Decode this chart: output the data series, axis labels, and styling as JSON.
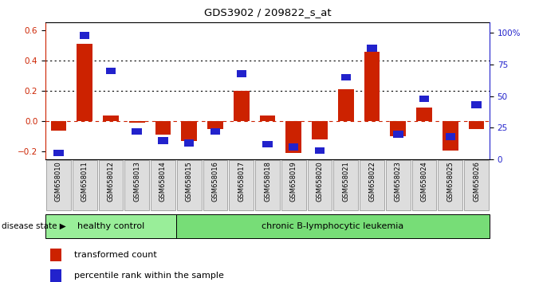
{
  "title": "GDS3902 / 209822_s_at",
  "samples": [
    "GSM658010",
    "GSM658011",
    "GSM658012",
    "GSM658013",
    "GSM658014",
    "GSM658015",
    "GSM658016",
    "GSM658017",
    "GSM658018",
    "GSM658019",
    "GSM658020",
    "GSM658021",
    "GSM658022",
    "GSM658023",
    "GSM658024",
    "GSM658025",
    "GSM658026"
  ],
  "bar_values": [
    -0.06,
    0.51,
    0.04,
    -0.01,
    -0.09,
    -0.13,
    -0.05,
    0.2,
    0.04,
    -0.21,
    -0.12,
    0.21,
    0.46,
    -0.1,
    0.09,
    -0.19,
    -0.05
  ],
  "percentile_values": [
    5,
    98,
    70,
    22,
    15,
    13,
    22,
    68,
    12,
    10,
    7,
    65,
    88,
    20,
    48,
    18,
    43
  ],
  "ylim_left": [
    -0.25,
    0.65
  ],
  "ylim_right": [
    0,
    108.3
  ],
  "yticks_left": [
    -0.2,
    0.0,
    0.2,
    0.4,
    0.6
  ],
  "yticks_right": [
    0,
    25,
    50,
    75,
    100
  ],
  "ytick_labels_right": [
    "0",
    "25",
    "50",
    "75",
    "100%"
  ],
  "hlines": [
    0.4,
    0.2
  ],
  "bar_color": "#CC2200",
  "blue_color": "#2222CC",
  "zero_line_color": "#CC2200",
  "healthy_label": "healthy control",
  "leukemia_label": "chronic B-lymphocytic leukemia",
  "disease_state_label": "disease state",
  "legend_bar_label": "transformed count",
  "legend_blue_label": "percentile rank within the sample",
  "healthy_color": "#99EE99",
  "leukemia_color": "#77DD77",
  "tick_label_color_left": "#CC2200",
  "tick_label_color_right": "#2222CC",
  "n_healthy": 5,
  "n_total": 17
}
